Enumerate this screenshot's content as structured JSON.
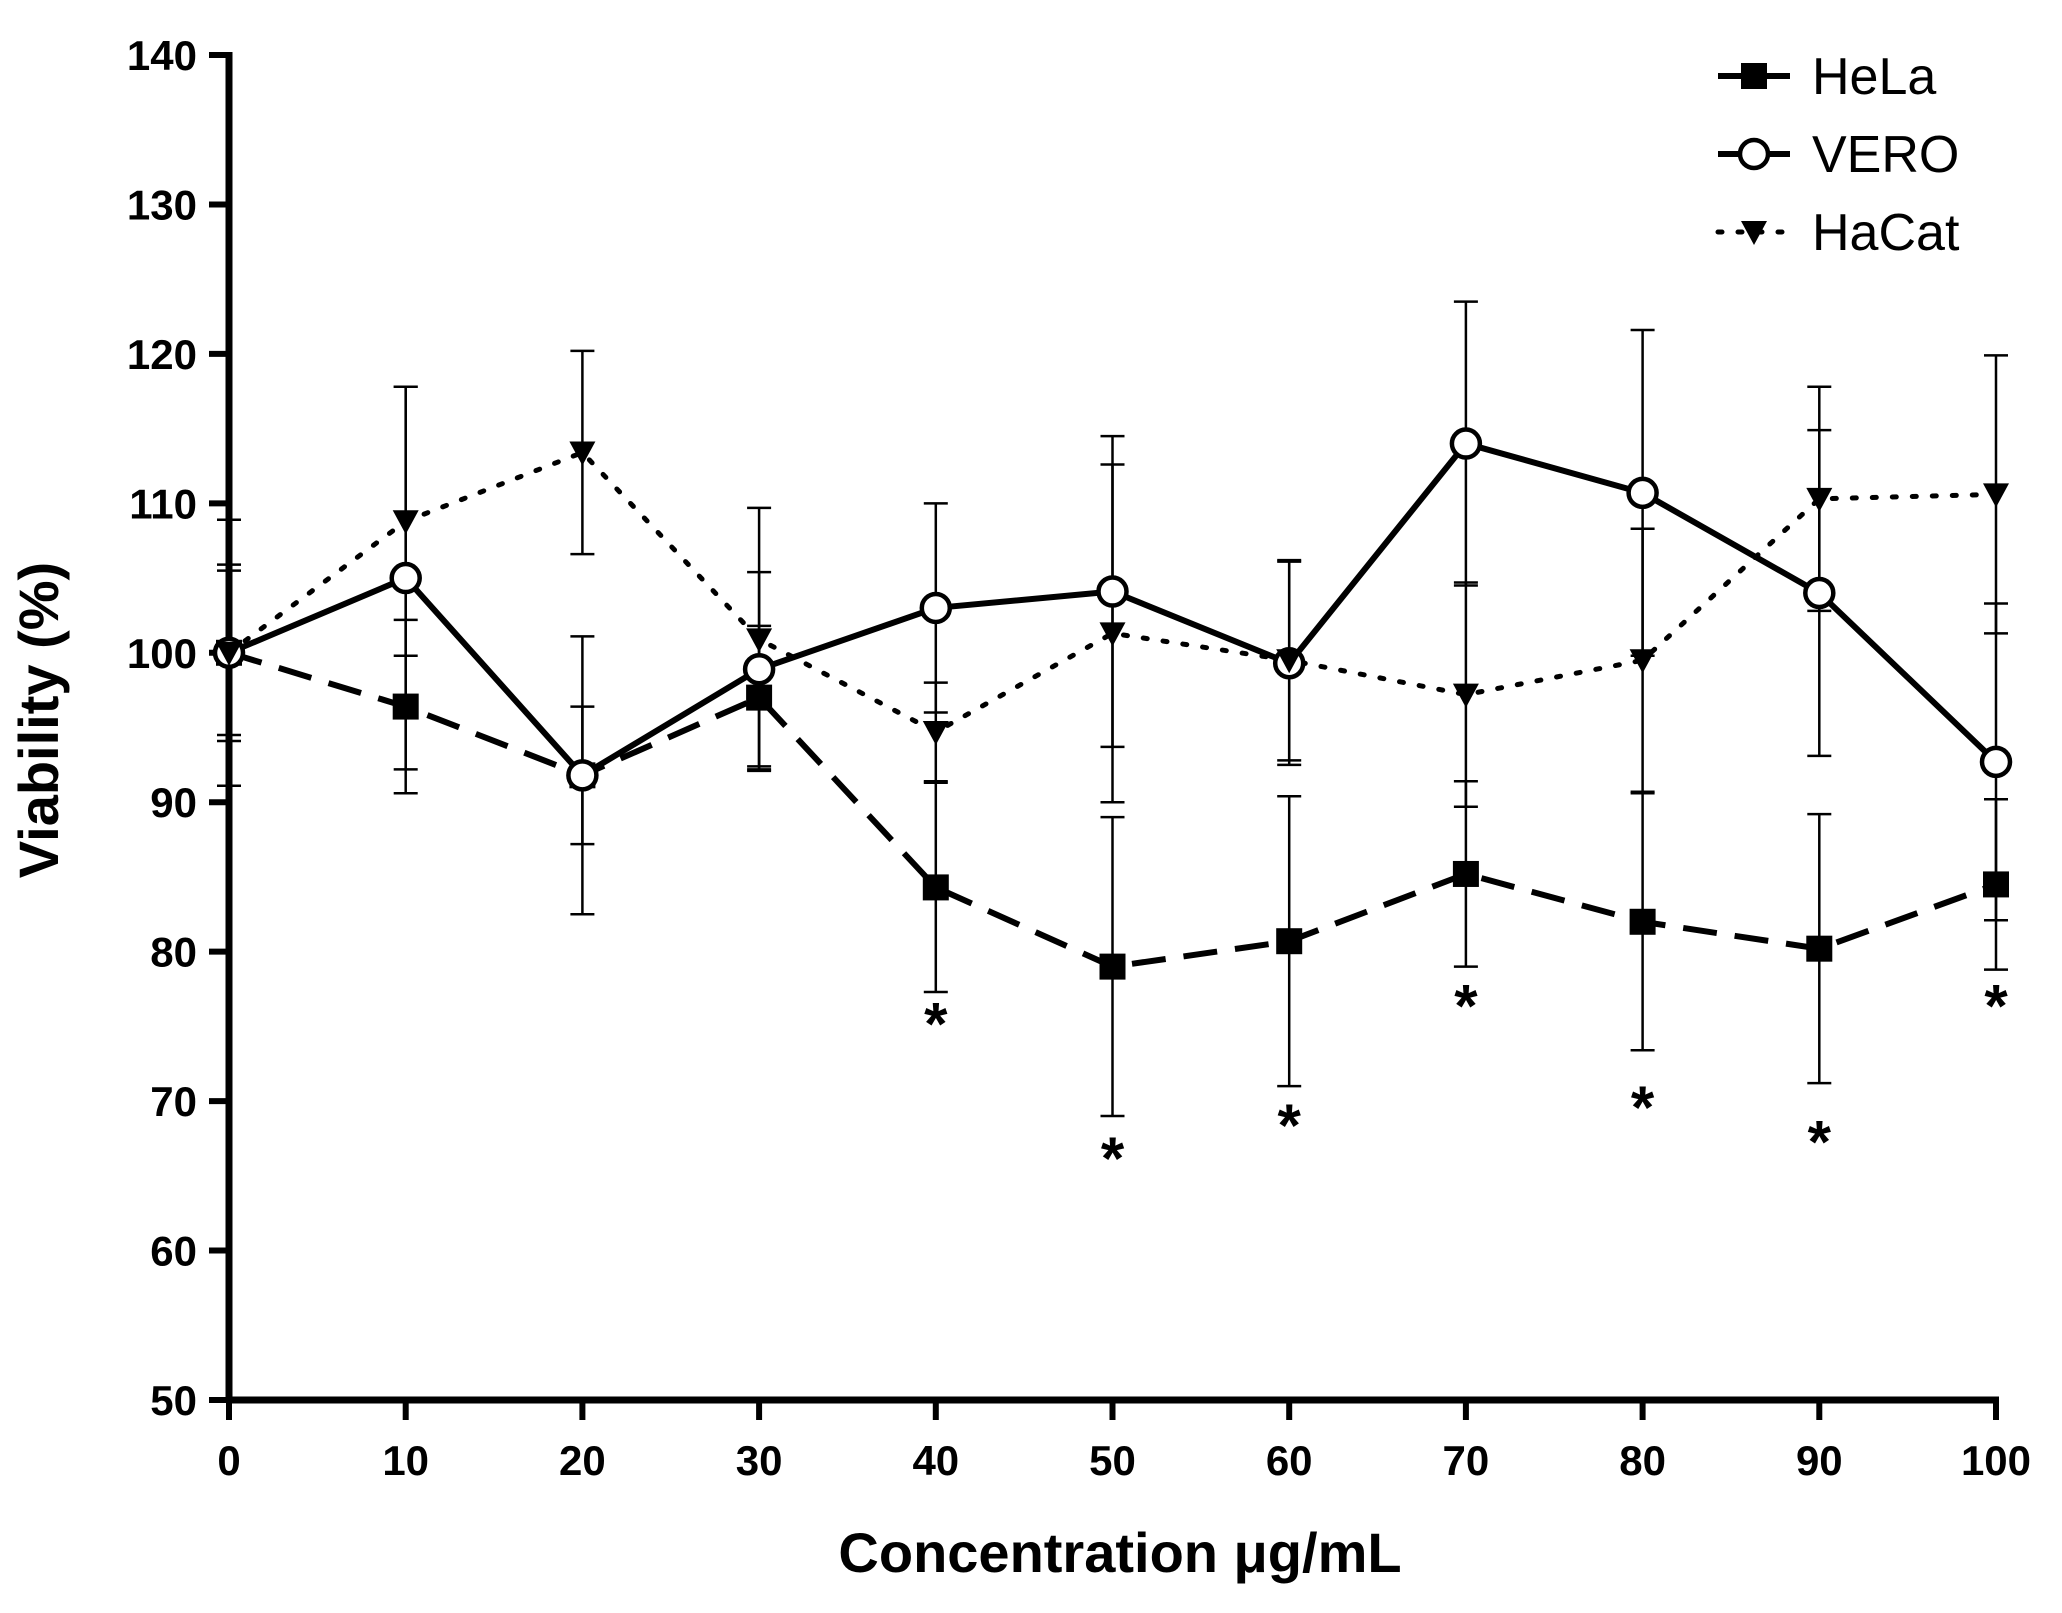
{
  "chart_data": {
    "type": "line",
    "title": "",
    "xlabel": "Concentration μg/mL",
    "ylabel": "Viability (%)",
    "xlim": [
      0,
      100
    ],
    "ylim": [
      50,
      140
    ],
    "x_ticks": [
      "0",
      "10",
      "20",
      "30",
      "40",
      "50",
      "60",
      "70",
      "80",
      "90",
      "100"
    ],
    "y_ticks": [
      "50",
      "60",
      "70",
      "80",
      "90",
      "100",
      "110",
      "120",
      "130",
      "140"
    ],
    "x": [
      0,
      10,
      20,
      30,
      40,
      50,
      60,
      70,
      80,
      90,
      100
    ],
    "series": [
      {
        "name": "HeLa",
        "line_style": "dashed",
        "marker": "square-filled",
        "values": [
          100,
          96.4,
          91.8,
          97.0,
          84.3,
          79.0,
          80.7,
          85.2,
          82.0,
          80.2,
          84.5
        ],
        "errors": [
          5.5,
          5.8,
          9.3,
          4.8,
          7.0,
          10.0,
          9.7,
          6.2,
          8.6,
          9.0,
          5.7
        ]
      },
      {
        "name": "VERO",
        "line_style": "solid",
        "marker": "circle-open",
        "values": [
          100,
          105.0,
          91.8,
          98.9,
          103.0,
          104.1,
          99.3,
          114.0,
          110.7,
          104.0,
          92.7
        ],
        "errors": [
          5.9,
          12.8,
          4.6,
          6.5,
          7.0,
          10.4,
          6.8,
          9.5,
          10.9,
          10.9,
          10.6
        ]
      },
      {
        "name": "HaCat",
        "line_style": "dotted",
        "marker": "triangle-down-filled",
        "values": [
          100,
          108.8,
          113.4,
          100.9,
          94.7,
          101.3,
          99.5,
          97.2,
          99.5,
          110.3,
          110.6
        ],
        "errors": [
          8.9,
          9.0,
          6.8,
          8.8,
          3.3,
          11.3,
          6.7,
          7.5,
          8.8,
          7.5,
          9.3
        ]
      }
    ],
    "significance_markers": [
      {
        "x": 40,
        "y": 75.8,
        "label": "*"
      },
      {
        "x": 50,
        "y": 66.8,
        "label": "*"
      },
      {
        "x": 60,
        "y": 69.0,
        "label": "*"
      },
      {
        "x": 70,
        "y": 77.0,
        "label": "*"
      },
      {
        "x": 80,
        "y": 70.2,
        "label": "*"
      },
      {
        "x": 90,
        "y": 67.9,
        "label": "*"
      },
      {
        "x": 100,
        "y": 77.0,
        "label": "*"
      }
    ],
    "legend_position": "top-right",
    "grid": false
  }
}
